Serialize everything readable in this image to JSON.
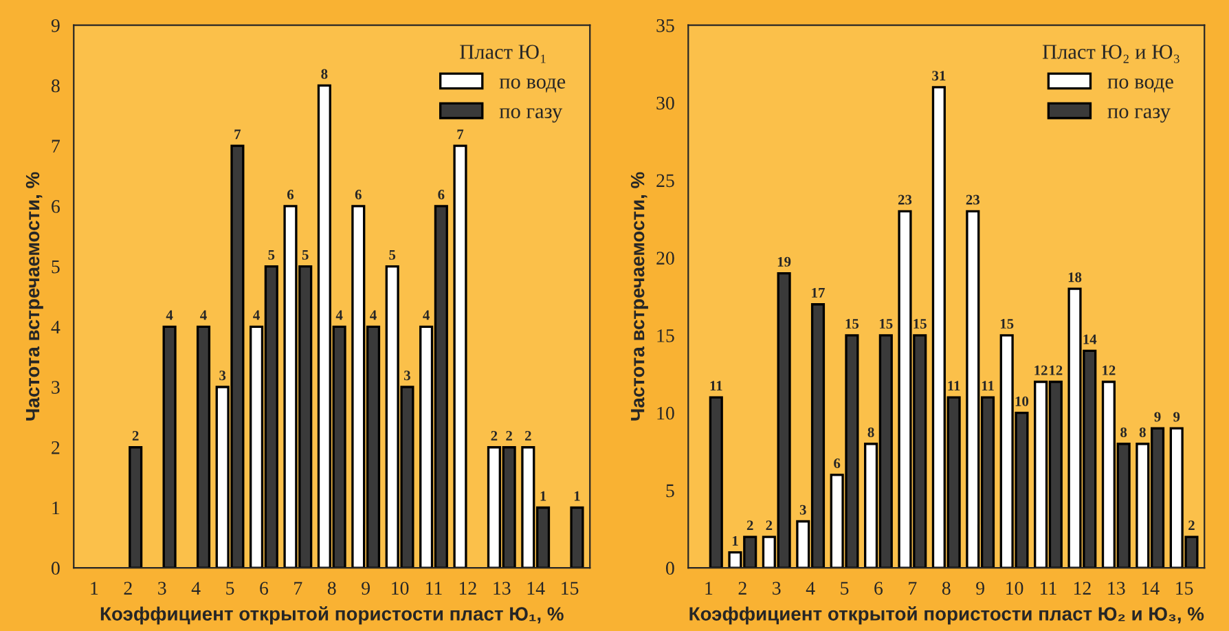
{
  "chart_data": [
    {
      "type": "bar",
      "legend_title": "Пласт Ю₁",
      "xlabel": "Коэффициент открытой пористости пласт Ю₁, %",
      "ylabel": "Частота встречаемости, %",
      "categories": [
        "1",
        "2",
        "3",
        "4",
        "5",
        "6",
        "7",
        "8",
        "9",
        "10",
        "11",
        "12",
        "13",
        "14",
        "15"
      ],
      "ylim": [
        0,
        9
      ],
      "yticks": [
        0,
        1,
        2,
        3,
        4,
        5,
        6,
        7,
        8,
        9
      ],
      "grid": false,
      "legend": "top right",
      "series": [
        {
          "name": "по воде",
          "color": "#ffffff",
          "values": [
            0,
            0,
            0,
            0,
            3,
            4,
            6,
            8,
            6,
            5,
            4,
            7,
            2,
            2,
            0
          ],
          "value_labels": [
            null,
            null,
            null,
            null,
            "3",
            "4",
            "6",
            "8",
            "6",
            "5",
            "4",
            "7",
            "2",
            "2",
            null
          ]
        },
        {
          "name": "по газу",
          "color": "#3a3a3a",
          "values": [
            0,
            2,
            4,
            4,
            7,
            5,
            5,
            4,
            4,
            3,
            6,
            0,
            2,
            1,
            1
          ],
          "value_labels": [
            null,
            "2",
            "4",
            "4",
            "7",
            "5",
            "5",
            "4",
            "4",
            "3",
            "6",
            null,
            "2",
            "1",
            "1"
          ]
        }
      ]
    },
    {
      "type": "bar",
      "legend_title": "Пласт Ю₂ и Ю₃",
      "xlabel": "Коэффициент открытой пористости пласт Ю₂ и Ю₃, %",
      "ylabel": "Частота встречаемости, %",
      "categories": [
        "1",
        "2",
        "3",
        "4",
        "5",
        "6",
        "7",
        "8",
        "9",
        "10",
        "11",
        "12",
        "13",
        "14",
        "15"
      ],
      "ylim": [
        0,
        35
      ],
      "yticks": [
        0,
        5,
        10,
        15,
        20,
        25,
        30,
        35
      ],
      "grid": false,
      "legend": "top right",
      "series": [
        {
          "name": "по воде",
          "color": "#ffffff",
          "values": [
            0,
            1,
            2,
            3,
            6,
            8,
            23,
            31,
            23,
            15,
            12,
            18,
            12,
            8,
            9
          ],
          "value_labels": [
            null,
            "1",
            "2",
            "3",
            "6",
            "8",
            "23",
            "31",
            "23",
            "15",
            "12",
            "18",
            "12",
            "8",
            "9"
          ]
        },
        {
          "name": "по газу",
          "color": "#3a3a3a",
          "values": [
            11,
            2,
            19,
            17,
            15,
            15,
            15,
            11,
            11,
            10,
            12,
            14,
            8,
            9,
            2
          ],
          "value_labels": [
            "11",
            "2",
            "19",
            "17",
            "15",
            "15",
            "15",
            "11",
            "11",
            "10",
            "12",
            "14",
            "8",
            "9",
            "2"
          ]
        }
      ]
    }
  ]
}
